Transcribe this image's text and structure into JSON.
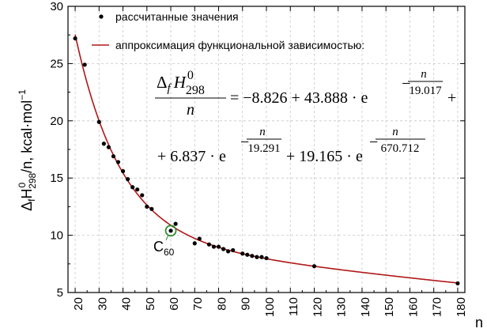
{
  "chart_data": {
    "type": "scatter",
    "xlabel": "n",
    "ylabel": {
      "delta": "Δ",
      "f": "f",
      "H": "H",
      "sup": "0",
      "sub": "298",
      "rest": "/n, kcal·mol",
      "unit_exp": "−1"
    },
    "xlim": [
      17,
      183
    ],
    "ylim": [
      5,
      30
    ],
    "x_ticks": [
      20,
      30,
      40,
      50,
      60,
      70,
      80,
      90,
      100,
      110,
      120,
      130,
      140,
      150,
      160,
      170,
      180
    ],
    "y_ticks": [
      5,
      10,
      15,
      20,
      25,
      30
    ],
    "grid": true,
    "legend_position": "top",
    "legend": [
      {
        "name": "рассчитанные значения",
        "kind": "marker"
      },
      {
        "name": "аппроксимация функциональной зависимостью:",
        "kind": "line"
      }
    ],
    "series": [
      {
        "name": "рассчитанные значения",
        "kind": "points",
        "x": [
          20,
          24,
          30,
          32,
          34,
          36,
          38,
          40,
          42,
          44,
          46,
          48,
          50,
          52,
          60,
          62,
          70,
          72,
          76,
          78,
          80,
          82,
          84,
          86,
          90,
          92,
          94,
          96,
          98,
          100,
          120,
          180
        ],
        "y": [
          27.2,
          24.9,
          19.9,
          18.0,
          17.7,
          16.9,
          16.4,
          15.6,
          14.9,
          14.2,
          14.0,
          13.5,
          12.5,
          12.3,
          10.4,
          11.0,
          9.3,
          9.7,
          9.2,
          9.0,
          9.0,
          8.8,
          8.6,
          8.7,
          8.4,
          8.3,
          8.2,
          8.1,
          8.1,
          8.0,
          7.3,
          5.8
        ]
      },
      {
        "name": "аппроксимация функциональной зависимостью:",
        "kind": "fit",
        "formula": {
          "c0": -8.826,
          "a1": 43.888,
          "t1": 19.017,
          "a2": 6.837,
          "t2": 19.291,
          "a3": 19.165,
          "t3": 670.712
        },
        "x_range": [
          20,
          180
        ]
      }
    ],
    "highlight": {
      "x": 60,
      "y": 10.4,
      "label": "C",
      "label_sub": "60",
      "color": "#2e8b2e"
    },
    "formula_text": {
      "delta": "Δ",
      "f": "f",
      "H": "H",
      "sup": "0",
      "sub": "298",
      "denominator": "n",
      "line1": "= −8.826 + 43.888 · e",
      "line1_tail": "+",
      "line2_start": "+ 6.837 · e",
      "line2_mid": "+ 19.165 · e",
      "exp1": {
        "num": "n",
        "den": "19.017"
      },
      "exp2": {
        "num": "n",
        "den": "19.291"
      },
      "exp3": {
        "num": "n",
        "den": "670.712"
      },
      "minus": "−"
    },
    "colors": {
      "points": "#000000",
      "fit_line": "#b01818",
      "grid": "#c8c8c8",
      "highlight": "#2e8b2e"
    }
  }
}
